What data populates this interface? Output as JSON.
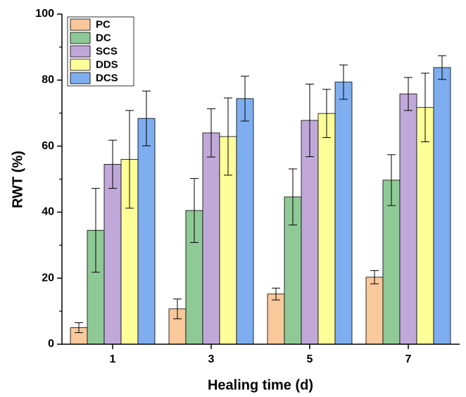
{
  "chart_data": {
    "type": "bar",
    "x_label": "Healing time (d)",
    "y_label": "RWT (%)",
    "categories": [
      "1",
      "3",
      "5",
      "7"
    ],
    "ylim": [
      0,
      100
    ],
    "yticks": [
      0,
      20,
      40,
      60,
      80,
      100
    ],
    "series": [
      {
        "name": "PC",
        "color": "#f9c89b",
        "values": [
          5,
          10.7,
          15.2,
          20.3
        ],
        "errors": [
          1.5,
          3,
          1.8,
          2
        ]
      },
      {
        "name": "DC",
        "color": "#8fca96",
        "values": [
          34.5,
          40.5,
          44.6,
          49.7
        ],
        "errors": [
          12.7,
          9.7,
          8.5,
          7.7
        ]
      },
      {
        "name": "SCS",
        "color": "#c0a9d9",
        "values": [
          54.5,
          64,
          67.8,
          75.8
        ],
        "errors": [
          7.3,
          7.3,
          11,
          5
        ]
      },
      {
        "name": "DDS",
        "color": "#ffff99",
        "values": [
          56,
          62.9,
          69.9,
          71.7
        ],
        "errors": [
          14.8,
          11.7,
          7.3,
          10.4
        ]
      },
      {
        "name": "DCS",
        "color": "#7eaef0",
        "values": [
          68.4,
          74.4,
          79.4,
          83.8
        ],
        "errors": [
          8.3,
          6.8,
          5.2,
          3.6
        ]
      }
    ],
    "legend": "top-left"
  }
}
